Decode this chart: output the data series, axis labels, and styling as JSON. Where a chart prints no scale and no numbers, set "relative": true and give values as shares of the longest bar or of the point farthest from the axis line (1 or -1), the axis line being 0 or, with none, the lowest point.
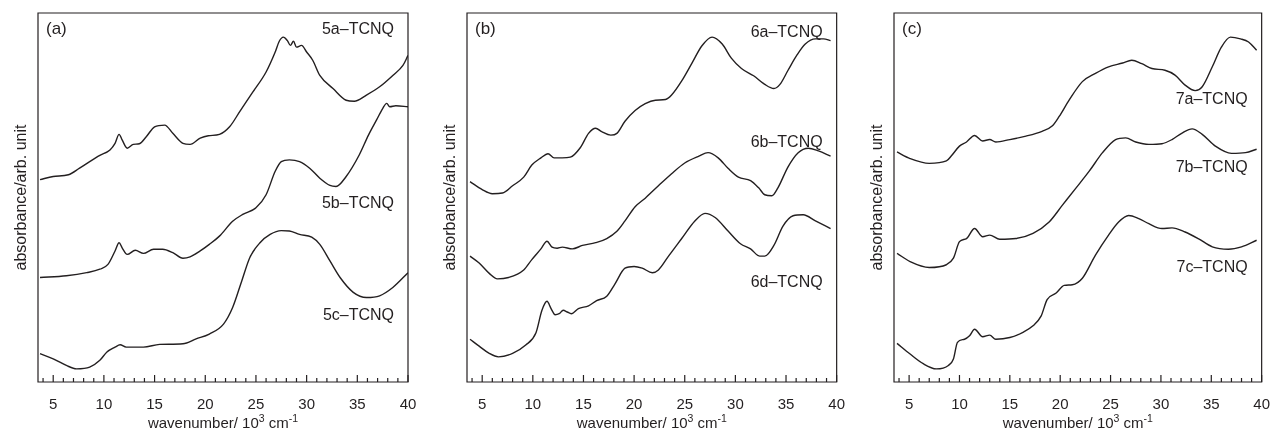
{
  "chart_data": [
    {
      "type": "line",
      "relative": true,
      "tick_labels": "x",
      "legend": false,
      "annotations": [
        "(a)"
      ],
      "xlabel": "wavenumber/ 10$^{3}$ cm$^{-1}$",
      "ylabel": "absorbance/arb. unit",
      "xlim": [
        3.5,
        40
      ],
      "xticks": [
        {
          "value": 4,
          "label": null
        },
        5,
        {
          "value": 6,
          "label": null
        },
        {
          "value": 7,
          "label": null
        },
        {
          "value": 8,
          "label": null
        },
        {
          "value": 9,
          "label": null
        },
        10,
        {
          "value": 11,
          "label": null
        },
        {
          "value": 12,
          "label": null
        },
        {
          "value": 13,
          "label": null
        },
        {
          "value": 14,
          "label": null
        },
        15,
        {
          "value": 16,
          "label": null
        },
        {
          "value": 17,
          "label": null
        },
        {
          "value": 18,
          "label": null
        },
        {
          "value": 19,
          "label": null
        },
        20,
        {
          "value": 21,
          "label": null
        },
        {
          "value": 22,
          "label": null
        },
        {
          "value": 23,
          "label": null
        },
        {
          "value": 24,
          "label": null
        },
        25,
        {
          "value": 26,
          "label": null
        },
        {
          "value": 27,
          "label": null
        },
        {
          "value": 28,
          "label": null
        },
        {
          "value": 29,
          "label": null
        },
        30,
        {
          "value": 31,
          "label": null
        },
        {
          "value": 32,
          "label": null
        },
        {
          "value": 33,
          "label": null
        },
        {
          "value": 34,
          "label": null
        },
        35,
        {
          "value": 36,
          "label": null
        },
        {
          "value": 37,
          "label": null
        },
        {
          "value": 38,
          "label": null
        },
        {
          "value": 39,
          "label": null
        },
        40
      ],
      "series": [
        {
          "name": "5a–TCNQ",
          "color": "#231f20",
          "x": [
            3.7,
            5,
            6.5,
            7.6,
            8.6,
            9.6,
            10.6,
            11.1,
            11.5,
            11.8,
            12.3,
            12.9,
            13.5,
            14.2,
            15.0,
            16.0,
            16.8,
            17.8,
            18.5,
            19.5,
            20.3,
            21.4,
            22.4,
            23.4,
            24.7,
            26.0,
            26.9,
            27.3,
            27.7,
            28.1,
            28.4,
            28.7,
            29.0,
            29.5,
            30.0,
            30.6,
            31.3,
            32.6,
            33.9,
            34.7,
            35.9,
            37.2,
            38.5,
            39.5,
            40
          ],
          "values": [
            0.587,
            0.596,
            0.601,
            0.62,
            0.639,
            0.657,
            0.673,
            0.692,
            0.718,
            0.702,
            0.678,
            0.689,
            0.691,
            0.712,
            0.74,
            0.745,
            0.721,
            0.692,
            0.689,
            0.707,
            0.714,
            0.718,
            0.74,
            0.784,
            0.841,
            0.899,
            0.957,
            0.988,
            1.0,
            0.99,
            0.976,
            0.988,
            0.971,
            0.976,
            0.957,
            0.933,
            0.889,
            0.851,
            0.817,
            0.814,
            0.832,
            0.856,
            0.889,
            0.918,
            0.947
          ]
        },
        {
          "name": "5b–TCNQ",
          "color": "#231f20",
          "x": [
            3.7,
            6.3,
            8.3,
            9.6,
            10.4,
            11.1,
            11.5,
            11.8,
            12.3,
            13.1,
            13.9,
            14.9,
            15.8,
            16.8,
            17.8,
            18.5,
            19.5,
            20.4,
            21.4,
            22.7,
            23.7,
            25.0,
            26.0,
            26.9,
            27.5,
            28.3,
            29.3,
            30.3,
            31.3,
            32.3,
            32.9,
            33.9,
            35.2,
            36.1,
            36.9,
            37.5,
            37.9,
            38.2,
            38.8,
            40
          ],
          "values": [
            0.303,
            0.308,
            0.317,
            0.327,
            0.341,
            0.38,
            0.404,
            0.389,
            0.37,
            0.382,
            0.373,
            0.385,
            0.385,
            0.375,
            0.359,
            0.363,
            0.38,
            0.399,
            0.423,
            0.466,
            0.486,
            0.505,
            0.543,
            0.611,
            0.639,
            0.644,
            0.639,
            0.62,
            0.591,
            0.57,
            0.567,
            0.596,
            0.659,
            0.716,
            0.76,
            0.793,
            0.808,
            0.798,
            0.801,
            0.798
          ]
        },
        {
          "name": "5c–TCNQ",
          "color": "#231f20",
          "x": [
            3.7,
            5,
            6.3,
            7.3,
            8.6,
            9.6,
            10.3,
            11.1,
            11.6,
            12.2,
            13.9,
            15.5,
            17.8,
            19.1,
            20.4,
            21.8,
            22.7,
            23.6,
            24.4,
            25.4,
            26.4,
            27.5,
            28.3,
            29.3,
            30.5,
            31.3,
            32.3,
            33.3,
            34.6,
            35.9,
            37.2,
            38.5,
            40
          ],
          "values": [
            0.082,
            0.067,
            0.048,
            0.038,
            0.043,
            0.063,
            0.087,
            0.101,
            0.108,
            0.101,
            0.101,
            0.109,
            0.111,
            0.125,
            0.139,
            0.168,
            0.216,
            0.293,
            0.361,
            0.404,
            0.428,
            0.439,
            0.438,
            0.428,
            0.42,
            0.399,
            0.351,
            0.303,
            0.26,
            0.245,
            0.25,
            0.274,
            0.317
          ]
        }
      ]
    },
    {
      "type": "line",
      "relative": true,
      "tick_labels": "x",
      "legend": false,
      "annotations": [
        "(b)"
      ],
      "xlabel": "wavenumber/ 10$^{3}$ cm$^{-1}$",
      "ylabel": "absorbance/arb. unit",
      "xlim": [
        3.5,
        40
      ],
      "xticks": [
        {
          "value": 4,
          "label": null
        },
        5,
        {
          "value": 6,
          "label": null
        },
        {
          "value": 7,
          "label": null
        },
        {
          "value": 8,
          "label": null
        },
        {
          "value": 9,
          "label": null
        },
        10,
        {
          "value": 11,
          "label": null
        },
        {
          "value": 12,
          "label": null
        },
        {
          "value": 13,
          "label": null
        },
        {
          "value": 14,
          "label": null
        },
        15,
        {
          "value": 16,
          "label": null
        },
        {
          "value": 17,
          "label": null
        },
        {
          "value": 18,
          "label": null
        },
        {
          "value": 19,
          "label": null
        },
        20,
        {
          "value": 21,
          "label": null
        },
        {
          "value": 22,
          "label": null
        },
        {
          "value": 23,
          "label": null
        },
        {
          "value": 24,
          "label": null
        },
        25,
        {
          "value": 26,
          "label": null
        },
        {
          "value": 27,
          "label": null
        },
        {
          "value": 28,
          "label": null
        },
        {
          "value": 29,
          "label": null
        },
        30,
        {
          "value": 31,
          "label": null
        },
        {
          "value": 32,
          "label": null
        },
        {
          "value": 33,
          "label": null
        },
        {
          "value": 34,
          "label": null
        },
        35,
        {
          "value": 36,
          "label": null
        },
        {
          "value": 37,
          "label": null
        },
        {
          "value": 38,
          "label": null
        },
        {
          "value": 39,
          "label": null
        },
        40
      ],
      "series": [
        {
          "name": "6a–TCNQ",
          "color": "#231f20",
          "x": [
            3.8,
            5,
            6.0,
            7.0,
            8.0,
            9.1,
            9.9,
            10.8,
            11.5,
            12.1,
            12.9,
            13.7,
            14.7,
            15.5,
            16.2,
            16.8,
            17.7,
            18.3,
            19.1,
            20.1,
            21.1,
            22.1,
            23.1,
            23.7,
            24.7,
            25.7,
            26.7,
            27.7,
            28.7,
            29.6,
            30.6,
            31.8,
            32.9,
            33.8,
            34.4,
            35.2,
            36.1,
            36.9,
            37.9,
            38.7,
            39.4
          ],
          "values": [
            0.581,
            0.558,
            0.546,
            0.548,
            0.569,
            0.594,
            0.629,
            0.65,
            0.662,
            0.65,
            0.65,
            0.652,
            0.68,
            0.721,
            0.736,
            0.726,
            0.716,
            0.721,
            0.756,
            0.787,
            0.807,
            0.817,
            0.819,
            0.832,
            0.873,
            0.924,
            0.975,
            1.0,
            0.98,
            0.939,
            0.909,
            0.888,
            0.863,
            0.851,
            0.863,
            0.904,
            0.949,
            0.98,
            0.995,
            0.995,
            0.99
          ]
        },
        {
          "name": "6b–TCNQ",
          "color": "#231f20",
          "x": [
            3.8,
            4.7,
            5.7,
            6.5,
            7.6,
            9.1,
            9.9,
            10.8,
            11.4,
            11.9,
            12.4,
            12.9,
            13.9,
            14.9,
            16.2,
            17.3,
            18.3,
            19.1,
            20.1,
            21.1,
            22.4,
            23.7,
            25.0,
            26.4,
            27.3,
            28.3,
            29.3,
            30.3,
            31.5,
            32.3,
            32.9,
            33.6,
            34.2,
            35.2,
            36.2,
            37.2,
            38.2,
            39.4
          ],
          "values": [
            0.365,
            0.345,
            0.315,
            0.299,
            0.303,
            0.325,
            0.355,
            0.386,
            0.408,
            0.391,
            0.388,
            0.391,
            0.386,
            0.396,
            0.404,
            0.416,
            0.437,
            0.467,
            0.508,
            0.533,
            0.569,
            0.604,
            0.635,
            0.655,
            0.665,
            0.65,
            0.619,
            0.594,
            0.584,
            0.563,
            0.543,
            0.54,
            0.563,
            0.624,
            0.665,
            0.678,
            0.67,
            0.655
          ]
        },
        {
          "name": "6d–TCNQ",
          "color": "#231f20",
          "x": [
            3.8,
            4.7,
            5.7,
            6.6,
            8.0,
            9.3,
            10.3,
            10.9,
            11.4,
            11.8,
            12.2,
            12.6,
            13.0,
            13.4,
            13.8,
            14.5,
            15.5,
            16.3,
            17.3,
            18.1,
            19.1,
            20.0,
            20.8,
            21.8,
            22.4,
            23.4,
            24.7,
            26.0,
            27.0,
            28.0,
            29.3,
            30.5,
            31.5,
            32.4,
            32.9,
            33.8,
            34.7,
            35.7,
            36.7,
            37.9,
            39.4
          ],
          "values": [
            0.124,
            0.104,
            0.083,
            0.073,
            0.083,
            0.107,
            0.142,
            0.208,
            0.234,
            0.213,
            0.195,
            0.198,
            0.208,
            0.203,
            0.198,
            0.213,
            0.221,
            0.236,
            0.249,
            0.284,
            0.33,
            0.335,
            0.33,
            0.317,
            0.325,
            0.365,
            0.416,
            0.467,
            0.489,
            0.477,
            0.437,
            0.401,
            0.386,
            0.365,
            0.365,
            0.396,
            0.452,
            0.482,
            0.485,
            0.467,
            0.445
          ]
        }
      ]
    },
    {
      "type": "line",
      "relative": true,
      "tick_labels": "x",
      "legend": false,
      "annotations": [
        "(c)"
      ],
      "xlabel": "wavenumber/ 10$^{3}$ cm$^{-1}$",
      "ylabel": "absorbance/arb. unit",
      "xlim": [
        3.5,
        40
      ],
      "xticks": [
        {
          "value": 4,
          "label": null
        },
        5,
        {
          "value": 6,
          "label": null
        },
        {
          "value": 7,
          "label": null
        },
        {
          "value": 8,
          "label": null
        },
        {
          "value": 9,
          "label": null
        },
        10,
        {
          "value": 11,
          "label": null
        },
        {
          "value": 12,
          "label": null
        },
        {
          "value": 13,
          "label": null
        },
        {
          "value": 14,
          "label": null
        },
        15,
        {
          "value": 16,
          "label": null
        },
        {
          "value": 17,
          "label": null
        },
        {
          "value": 18,
          "label": null
        },
        {
          "value": 19,
          "label": null
        },
        20,
        {
          "value": 21,
          "label": null
        },
        {
          "value": 22,
          "label": null
        },
        {
          "value": 23,
          "label": null
        },
        {
          "value": 24,
          "label": null
        },
        25,
        {
          "value": 26,
          "label": null
        },
        {
          "value": 27,
          "label": null
        },
        {
          "value": 28,
          "label": null
        },
        {
          "value": 29,
          "label": null
        },
        30,
        {
          "value": 31,
          "label": null
        },
        {
          "value": 32,
          "label": null
        },
        {
          "value": 33,
          "label": null
        },
        {
          "value": 34,
          "label": null
        },
        35,
        {
          "value": 36,
          "label": null
        },
        {
          "value": 37,
          "label": null
        },
        {
          "value": 38,
          "label": null
        },
        {
          "value": 39,
          "label": null
        },
        40
      ],
      "series": [
        {
          "name": "7a–TCNQ",
          "color": "#231f20",
          "x": [
            3.8,
            5.1,
            7.0,
            8.7,
            9.2,
            10.0,
            10.7,
            11.5,
            12.3,
            13.0,
            13.6,
            15.0,
            16.6,
            18.2,
            19.2,
            19.9,
            20.9,
            22.2,
            23.5,
            24.8,
            26.2,
            27.1,
            28.1,
            29.1,
            30.4,
            31.4,
            32.4,
            33.4,
            34.1,
            35.1,
            36.0,
            36.9,
            37.9,
            38.7,
            39.5
          ],
          "values": [
            0.667,
            0.648,
            0.634,
            0.641,
            0.656,
            0.684,
            0.696,
            0.715,
            0.699,
            0.703,
            0.696,
            0.703,
            0.713,
            0.727,
            0.742,
            0.77,
            0.818,
            0.871,
            0.895,
            0.914,
            0.925,
            0.933,
            0.923,
            0.909,
            0.904,
            0.89,
            0.861,
            0.845,
            0.856,
            0.914,
            0.971,
            1.0,
            0.995,
            0.986,
            0.962
          ]
        },
        {
          "name": "7b–TCNQ",
          "color": "#231f20",
          "x": [
            3.8,
            5.1,
            7.0,
            8.7,
            9.4,
            10.0,
            10.7,
            11.5,
            12.3,
            13.0,
            14.0,
            15.6,
            17.3,
            18.9,
            20.2,
            21.5,
            22.9,
            24.2,
            25.5,
            26.5,
            27.5,
            28.8,
            30.1,
            31.1,
            32.1,
            33.1,
            34.1,
            35.4,
            37.0,
            38.4,
            39.5
          ],
          "values": [
            0.373,
            0.349,
            0.332,
            0.34,
            0.359,
            0.407,
            0.416,
            0.445,
            0.421,
            0.426,
            0.414,
            0.416,
            0.431,
            0.464,
            0.512,
            0.56,
            0.612,
            0.665,
            0.703,
            0.708,
            0.696,
            0.689,
            0.691,
            0.703,
            0.722,
            0.734,
            0.718,
            0.684,
            0.663,
            0.665,
            0.675
          ]
        },
        {
          "name": "7c–TCNQ",
          "color": "#231f20",
          "x": [
            3.8,
            5.1,
            6.4,
            7.7,
            8.9,
            9.4,
            9.8,
            10.5,
            11.0,
            11.5,
            12.3,
            13.0,
            13.6,
            15.0,
            16.3,
            17.3,
            18.1,
            18.7,
            19.6,
            20.4,
            21.2,
            22.2,
            23.5,
            24.8,
            25.8,
            26.8,
            27.8,
            28.8,
            30.1,
            31.1,
            32.4,
            33.7,
            35.1,
            36.7,
            38.0,
            39.5
          ],
          "values": [
            0.112,
            0.081,
            0.053,
            0.038,
            0.048,
            0.067,
            0.115,
            0.124,
            0.134,
            0.153,
            0.131,
            0.136,
            0.124,
            0.129,
            0.144,
            0.163,
            0.191,
            0.239,
            0.258,
            0.28,
            0.282,
            0.301,
            0.368,
            0.426,
            0.464,
            0.483,
            0.474,
            0.459,
            0.445,
            0.447,
            0.435,
            0.416,
            0.392,
            0.385,
            0.392,
            0.411
          ]
        }
      ]
    }
  ]
}
